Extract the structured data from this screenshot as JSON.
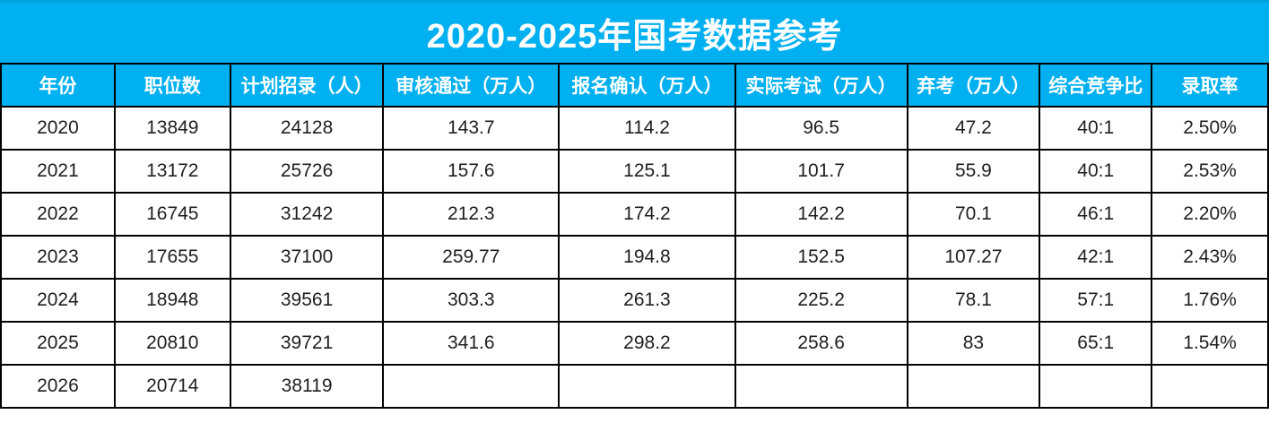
{
  "title": "2020-2025年国考数据参考",
  "colors": {
    "accent_blue": "#00B0F0",
    "accent_blue_dark_edge": "#00a2dd",
    "grid_border": "#000000",
    "header_text": "#ffffff",
    "cell_text": "#1f1f1f"
  },
  "chart_data": {
    "type": "table",
    "title": "2020-2025年国考数据参考",
    "columns": [
      "年份",
      "职位数",
      "计划招录（人）",
      "审核通过（万人）",
      "报名确认（万人）",
      "实际考试（万人）",
      "弃考（万人）",
      "综合竞争比",
      "录取率"
    ],
    "rows": [
      [
        "2020",
        "13849",
        "24128",
        "143.7",
        "114.2",
        "96.5",
        "47.2",
        "40:1",
        "2.50%"
      ],
      [
        "2021",
        "13172",
        "25726",
        "157.6",
        "125.1",
        "101.7",
        "55.9",
        "40:1",
        "2.53%"
      ],
      [
        "2022",
        "16745",
        "31242",
        "212.3",
        "174.2",
        "142.2",
        "70.1",
        "46:1",
        "2.20%"
      ],
      [
        "2023",
        "17655",
        "37100",
        "259.77",
        "194.8",
        "152.5",
        "107.27",
        "42:1",
        "2.43%"
      ],
      [
        "2024",
        "18948",
        "39561",
        "303.3",
        "261.3",
        "225.2",
        "78.1",
        "57:1",
        "1.76%"
      ],
      [
        "2025",
        "20810",
        "39721",
        "341.6",
        "298.2",
        "258.6",
        "83",
        "65:1",
        "1.54%"
      ],
      [
        "2026",
        "20714",
        "38119",
        "",
        "",
        "",
        "",
        "",
        ""
      ]
    ],
    "layout_hints": {
      "header_fill": "#00B0F0",
      "header_text_color": "#ffffff",
      "grid": true,
      "column_width_percents": [
        8.98,
        9.12,
        12.08,
        13.85,
        13.92,
        13.57,
        10.46,
        8.83,
        9.19
      ]
    }
  }
}
